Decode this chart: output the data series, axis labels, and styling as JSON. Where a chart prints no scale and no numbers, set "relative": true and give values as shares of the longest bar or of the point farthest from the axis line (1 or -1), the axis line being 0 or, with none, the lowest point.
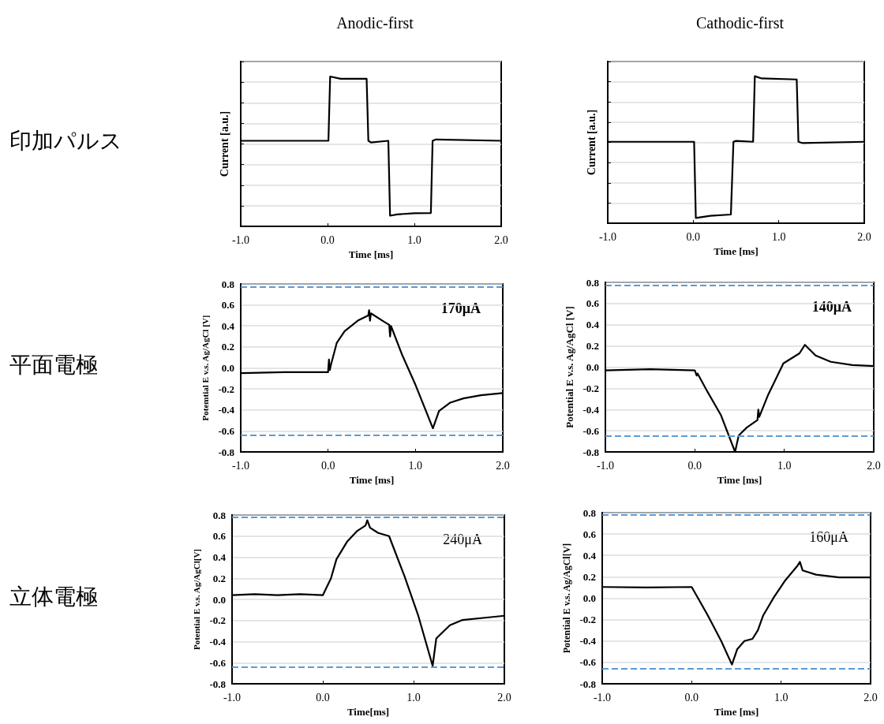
{
  "chart_data": [
    {
      "type": "line",
      "title": "Anodic-first",
      "xlabel": "Time [ms]",
      "ylabel": "Current [a.u.]",
      "relative": true,
      "annotations": [
        "印加パルス"
      ],
      "tick_labels": "x",
      "grid": "y",
      "marker": "none",
      "line_style": "solid",
      "xlim": [
        -1,
        2
      ],
      "xticks": [
        {
          "value": -1,
          "label": "-1.0"
        },
        {
          "value": 0,
          "label": "0.0"
        },
        {
          "value": 1,
          "label": "1.0"
        },
        {
          "value": 2,
          "label": "2.0"
        }
      ],
      "series": [
        {
          "color": "#000000",
          "x": [
            -1,
            0,
            0.01,
            0.03,
            0.15,
            0.45,
            0.47,
            0.5,
            0.7,
            0.72,
            0.8,
            1.0,
            1.19,
            1.21,
            1.25,
            2
          ],
          "values": [
            0.571,
            0.571,
            0.571,
            1.0,
            0.985,
            0.985,
            0.571,
            0.56,
            0.571,
            0.071,
            0.08,
            0.087,
            0.089,
            0.571,
            0.58,
            0.571
          ]
        }
      ]
    },
    {
      "type": "line",
      "title": "Cathodic-first",
      "xlabel": "Time [ms]",
      "ylabel": "Current [a.u.]",
      "relative": true,
      "tick_labels": "x",
      "grid": "y",
      "marker": "none",
      "line_style": "solid",
      "xlim": [
        -1,
        2
      ],
      "xticks": [
        {
          "value": -1,
          "label": "-1.0"
        },
        {
          "value": 0,
          "label": "0.0"
        },
        {
          "value": 1,
          "label": "1.0"
        },
        {
          "value": 2,
          "label": "2.0"
        }
      ],
      "series": [
        {
          "color": "#000000",
          "x": [
            -1,
            0,
            0.01,
            0.03,
            0.2,
            0.44,
            0.47,
            0.5,
            0.7,
            0.72,
            0.8,
            1.21,
            1.23,
            1.28,
            2
          ],
          "values": [
            0.554,
            0.554,
            0.554,
            0.036,
            0.05,
            0.059,
            0.554,
            0.56,
            0.554,
            1.0,
            0.985,
            0.978,
            0.554,
            0.545,
            0.554
          ]
        }
      ]
    },
    {
      "type": "line",
      "xlabel": "Time [ms]",
      "ylabel": "Potemtial E v.s. Ag/AgCl [V]",
      "annotations": [
        "平面電極",
        "170μA"
      ],
      "grid": "y",
      "marker": "none",
      "line_style": "solid",
      "xlim": [
        -1,
        2
      ],
      "xticks": [
        {
          "value": -1,
          "label": "-1.0"
        },
        {
          "value": 0,
          "label": "0.0"
        },
        {
          "value": 1,
          "label": "1.0"
        },
        {
          "value": 2,
          "label": "2.0"
        }
      ],
      "ylim": [
        -0.8,
        0.8
      ],
      "yticks": [
        {
          "value": -0.8,
          "label": "-0.8"
        },
        {
          "value": -0.6,
          "label": "-0.6"
        },
        {
          "value": -0.4,
          "label": "-0.4"
        },
        {
          "value": -0.2,
          "label": "-0.2"
        },
        {
          "value": 0,
          "label": "0.0"
        },
        {
          "value": 0.2,
          "label": "0.2"
        },
        {
          "value": 0.4,
          "label": "0.4"
        },
        {
          "value": 0.6,
          "label": "0.6"
        },
        {
          "value": 0.8,
          "label": "0.8"
        }
      ],
      "ref_lines": [
        {
          "axis": "y",
          "value": 0.77,
          "color": "#5b9bd5",
          "line_style": "dashed"
        },
        {
          "axis": "y",
          "value": -0.64,
          "color": "#5b9bd5",
          "line_style": "dashed"
        }
      ],
      "series": [
        {
          "color": "#000000",
          "x": [
            -1,
            -0.5,
            0,
            0.01,
            0.02,
            0.03,
            0.1,
            0.19,
            0.34,
            0.46,
            0.47,
            0.48,
            0.49,
            0.64,
            0.7,
            0.71,
            0.72,
            0.85,
            1.0,
            1.2,
            1.27,
            1.4,
            1.55,
            1.75,
            2
          ],
          "values": [
            -0.05,
            -0.04,
            -0.04,
            0.08,
            -0.02,
            0.02,
            0.24,
            0.35,
            0.45,
            0.5,
            0.55,
            0.45,
            0.52,
            0.44,
            0.41,
            0.3,
            0.4,
            0.12,
            -0.16,
            -0.575,
            -0.41,
            -0.33,
            -0.29,
            -0.26,
            -0.24
          ]
        }
      ]
    },
    {
      "type": "line",
      "xlabel": "Time [ms]",
      "ylabel": "Potential E v.s. Ag/AgCl [V]",
      "annotations": [
        "140μA"
      ],
      "grid": "y",
      "marker": "none",
      "line_style": "solid",
      "xlim": [
        -1,
        2
      ],
      "xticks": [
        {
          "value": -1,
          "label": "-1.0"
        },
        {
          "value": 0,
          "label": "0.0"
        },
        {
          "value": 1,
          "label": "1.0"
        },
        {
          "value": 2,
          "label": "2.0"
        }
      ],
      "ylim": [
        -0.8,
        0.8
      ],
      "yticks": [
        {
          "value": -0.8,
          "label": "-0.8"
        },
        {
          "value": -0.6,
          "label": "-0.6"
        },
        {
          "value": -0.4,
          "label": "-0.4"
        },
        {
          "value": -0.2,
          "label": "-0.2"
        },
        {
          "value": 0,
          "label": "0.0"
        },
        {
          "value": 0.2,
          "label": "0.2"
        },
        {
          "value": 0.4,
          "label": "0.4"
        },
        {
          "value": 0.6,
          "label": "0.6"
        },
        {
          "value": 0.8,
          "label": "0.8"
        }
      ],
      "ref_lines": [
        {
          "axis": "y",
          "value": 0.77,
          "color": "#5b9bd5",
          "line_style": "dashed"
        },
        {
          "axis": "y",
          "value": -0.65,
          "color": "#5b9bd5",
          "line_style": "dashed"
        }
      ],
      "series": [
        {
          "color": "#000000",
          "x": [
            -1,
            -0.5,
            0,
            0.02,
            0.03,
            0.14,
            0.29,
            0.45,
            0.49,
            0.58,
            0.7,
            0.71,
            0.72,
            0.82,
            0.99,
            1.17,
            1.23,
            1.35,
            1.52,
            1.76,
            2
          ],
          "values": [
            -0.03,
            -0.02,
            -0.03,
            -0.08,
            -0.06,
            -0.23,
            -0.45,
            -0.8,
            -0.645,
            -0.57,
            -0.5,
            -0.4,
            -0.47,
            -0.26,
            0.035,
            0.13,
            0.21,
            0.11,
            0.05,
            0.02,
            0.01
          ]
        }
      ]
    },
    {
      "type": "line",
      "xlabel": "Time[ms]",
      "ylabel": "Potential E v.s. Ag/AgCl[V]",
      "annotations": [
        "立体電極",
        "240μA"
      ],
      "grid": "y",
      "marker": "none",
      "line_style": "solid",
      "xlim": [
        -1,
        2
      ],
      "xticks": [
        {
          "value": -1,
          "label": "-1.0"
        },
        {
          "value": 0,
          "label": "0.0"
        },
        {
          "value": 1,
          "label": "1.0"
        },
        {
          "value": 2,
          "label": "2.0"
        }
      ],
      "ylim": [
        -0.8,
        0.8
      ],
      "yticks": [
        {
          "value": -0.8,
          "label": "-0.8"
        },
        {
          "value": -0.6,
          "label": "-0.6"
        },
        {
          "value": -0.4,
          "label": "-0.4"
        },
        {
          "value": -0.2,
          "label": "-0.2"
        },
        {
          "value": 0,
          "label": "0.0"
        },
        {
          "value": 0.2,
          "label": "0.2"
        },
        {
          "value": 0.4,
          "label": "0.4"
        },
        {
          "value": 0.6,
          "label": "0.6"
        },
        {
          "value": 0.8,
          "label": "0.8"
        }
      ],
      "ref_lines": [
        {
          "axis": "y",
          "value": 0.775,
          "color": "#5b9bd5",
          "line_style": "dashed"
        },
        {
          "axis": "y",
          "value": -0.64,
          "color": "#5b9bd5",
          "line_style": "dashed"
        }
      ],
      "series": [
        {
          "color": "#000000",
          "x": [
            -1,
            -0.75,
            -0.5,
            -0.25,
            0,
            0.09,
            0.15,
            0.27,
            0.38,
            0.47,
            0.49,
            0.52,
            0.61,
            0.73,
            0.9,
            1.05,
            1.21,
            1.25,
            1.4,
            1.54,
            1.83,
            2
          ],
          "values": [
            0.04,
            0.05,
            0.04,
            0.05,
            0.04,
            0.2,
            0.38,
            0.55,
            0.65,
            0.7,
            0.75,
            0.68,
            0.63,
            0.6,
            0.22,
            -0.15,
            -0.63,
            -0.37,
            -0.245,
            -0.195,
            -0.17,
            -0.155
          ]
        }
      ]
    },
    {
      "type": "line",
      "xlabel": "Time [ms]",
      "ylabel": "Potential E v.s. Ag/AgCl[V]",
      "annotations": [
        "160μA"
      ],
      "grid": "y",
      "marker": "none",
      "line_style": "solid",
      "xlim": [
        -1,
        2
      ],
      "xticks": [
        {
          "value": -1,
          "label": "-1.0"
        },
        {
          "value": 0,
          "label": "0.0"
        },
        {
          "value": 1,
          "label": "1.0"
        },
        {
          "value": 2,
          "label": "2.0"
        }
      ],
      "ylim": [
        -0.8,
        0.8
      ],
      "yticks": [
        {
          "value": -0.8,
          "label": "-0.8"
        },
        {
          "value": -0.6,
          "label": "-0.6"
        },
        {
          "value": -0.4,
          "label": "-0.4"
        },
        {
          "value": -0.2,
          "label": "-0.2"
        },
        {
          "value": 0,
          "label": "0.0"
        },
        {
          "value": 0.2,
          "label": "0.2"
        },
        {
          "value": 0.4,
          "label": "0.4"
        },
        {
          "value": 0.6,
          "label": "0.6"
        },
        {
          "value": 0.8,
          "label": "0.8"
        }
      ],
      "ref_lines": [
        {
          "axis": "y",
          "value": 0.78,
          "color": "#5b9bd5",
          "line_style": "dashed"
        },
        {
          "axis": "y",
          "value": -0.66,
          "color": "#5b9bd5",
          "line_style": "dashed"
        }
      ],
      "series": [
        {
          "color": "#000000",
          "x": [
            -1,
            -0.5,
            0,
            0.18,
            0.33,
            0.45,
            0.51,
            0.59,
            0.68,
            0.74,
            0.8,
            0.92,
            1.04,
            1.18,
            1.21,
            1.24,
            1.39,
            1.65,
            2
          ],
          "values": [
            0.105,
            0.1,
            0.105,
            -0.16,
            -0.4,
            -0.62,
            -0.475,
            -0.4,
            -0.38,
            -0.3,
            -0.16,
            0.01,
            0.16,
            0.3,
            0.34,
            0.26,
            0.22,
            0.195,
            0.195
          ]
        }
      ]
    }
  ]
}
